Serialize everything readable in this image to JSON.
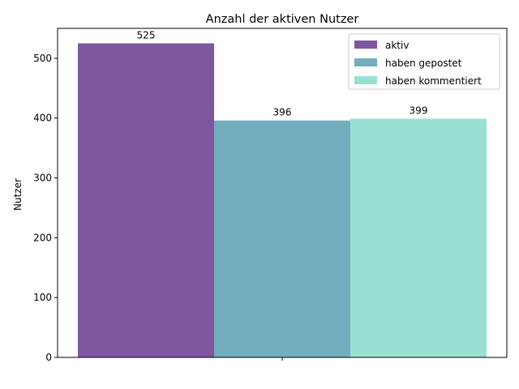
{
  "chart_data": {
    "type": "bar",
    "title": "Anzahl der aktiven Nutzer",
    "xlabel": "",
    "ylabel": "Nutzer",
    "ylim": [
      0,
      550
    ],
    "yticks": [
      0,
      100,
      200,
      300,
      400,
      500
    ],
    "categories": [
      ""
    ],
    "series": [
      {
        "name": "aktiv",
        "values": [
          525
        ],
        "color": "#7E57A0"
      },
      {
        "name": "haben gepostet",
        "values": [
          396
        ],
        "color": "#72AEBE"
      },
      {
        "name": "haben kommentiert",
        "values": [
          399
        ],
        "color": "#98E0D2"
      }
    ],
    "legend_position": "top-right",
    "grid": false
  }
}
